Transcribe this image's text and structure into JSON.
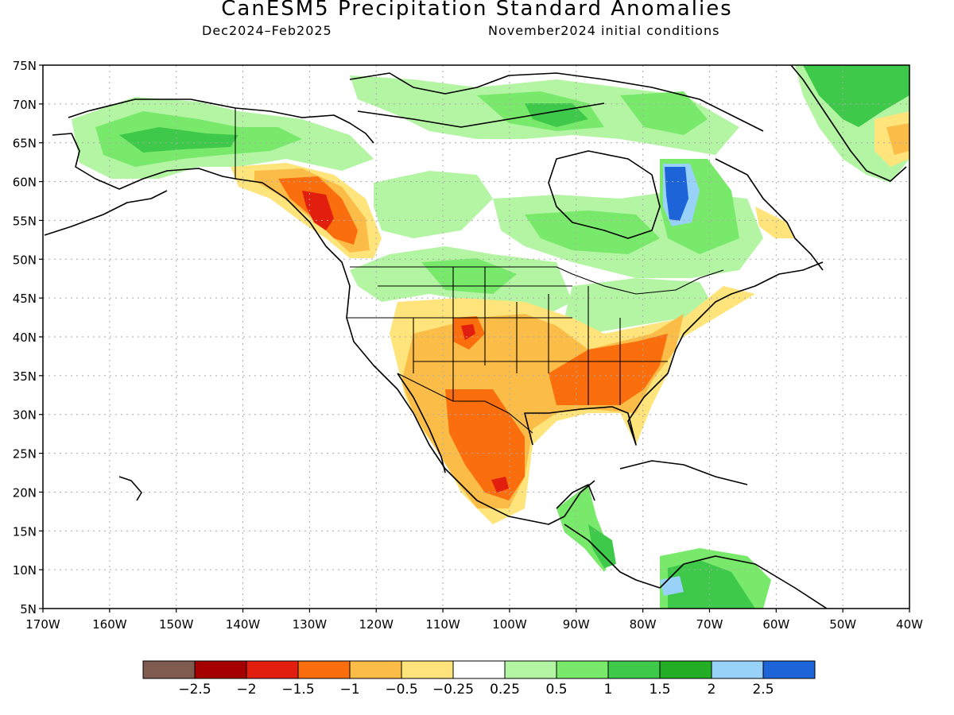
{
  "header": {
    "title": "CanESM5 Precipitation Standard Anomalies",
    "period": "Dec2024–Feb2025",
    "initial_conditions": "November2024 initial conditions"
  },
  "map": {
    "lat_labels": [
      "75N",
      "70N",
      "65N",
      "60N",
      "55N",
      "50N",
      "45N",
      "40N",
      "35N",
      "30N",
      "25N",
      "20N",
      "15N",
      "10N",
      "5N"
    ],
    "lon_labels": [
      "170W",
      "160W",
      "150W",
      "140W",
      "130W",
      "120W",
      "110W",
      "100W",
      "90W",
      "80W",
      "70W",
      "60W",
      "50W",
      "40W"
    ]
  },
  "legend": {
    "colors": [
      "#7f5a4e",
      "#a50000",
      "#e21e0f",
      "#fa6e0d",
      "#fbbd48",
      "#fee47a",
      "#ffffff",
      "#b4f5a4",
      "#78e96a",
      "#3ec94a",
      "#22ad25",
      "#98d2f8",
      "#1d64d8"
    ],
    "labels": [
      "−2.5",
      "−2",
      "−1.5",
      "−1",
      "−0.5",
      "−0.25",
      "0.25",
      "0.5",
      "1",
      "1.5",
      "2",
      "2.5"
    ]
  }
}
